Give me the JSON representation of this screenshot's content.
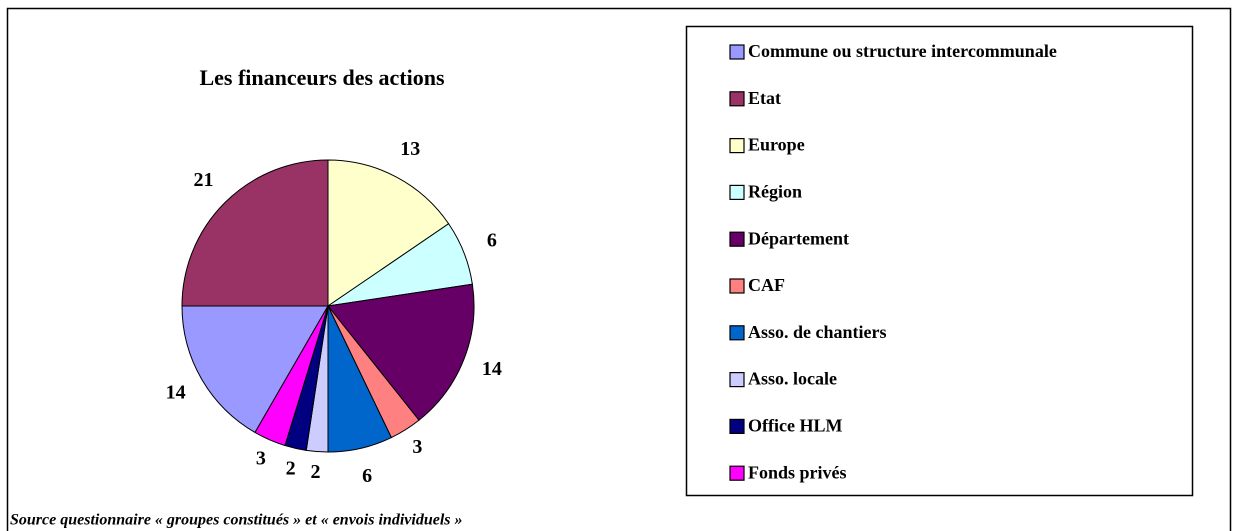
{
  "chart_data": {
    "type": "pie",
    "title": "Les financeurs des actions",
    "categories": [
      "Commune ou structure intercommunale",
      "Etat",
      "Europe",
      "Région",
      "Département",
      "CAF",
      "Asso. de chantiers",
      "Asso. locale",
      "Office HLM",
      "Fonds privés"
    ],
    "values": [
      14,
      21,
      13,
      6,
      14,
      3,
      6,
      2,
      2,
      3
    ],
    "colors": [
      "#9999ff",
      "#993366",
      "#ffffcc",
      "#ccffff",
      "#660066",
      "#ff8080",
      "#0066cc",
      "#ccccff",
      "#000080",
      "#ff00ff"
    ],
    "legend": "right",
    "source": "Source questionnaire « groupes constitués » et « envois individuels »"
  }
}
